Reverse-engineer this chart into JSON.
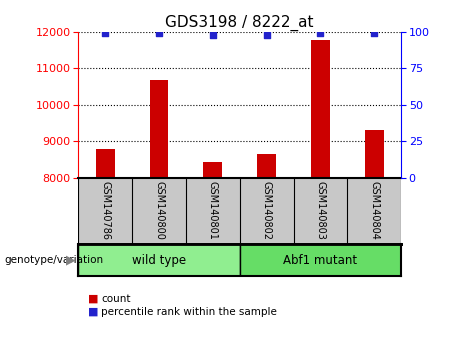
{
  "title": "GDS3198 / 8222_at",
  "samples": [
    "GSM140786",
    "GSM140800",
    "GSM140801",
    "GSM140802",
    "GSM140803",
    "GSM140804"
  ],
  "counts": [
    8780,
    10680,
    8440,
    8660,
    11780,
    9320
  ],
  "percentile_ranks": [
    99,
    99,
    98,
    98,
    99,
    99
  ],
  "ylim_left": [
    8000,
    12000
  ],
  "ylim_right": [
    0,
    100
  ],
  "yticks_left": [
    8000,
    9000,
    10000,
    11000,
    12000
  ],
  "yticks_right": [
    0,
    25,
    50,
    75,
    100
  ],
  "bar_color": "#cc0000",
  "dot_color": "#2222cc",
  "background_plot": "#ffffff",
  "background_label": "#c8c8c8",
  "groups": [
    {
      "label": "wild type",
      "indices": [
        0,
        1,
        2
      ],
      "color": "#90ee90"
    },
    {
      "label": "Abf1 mutant",
      "indices": [
        3,
        4,
        5
      ],
      "color": "#66dd66"
    }
  ],
  "genotype_label": "genotype/variation",
  "legend_count_label": "count",
  "legend_percentile_label": "percentile rank within the sample",
  "bar_width": 0.35
}
